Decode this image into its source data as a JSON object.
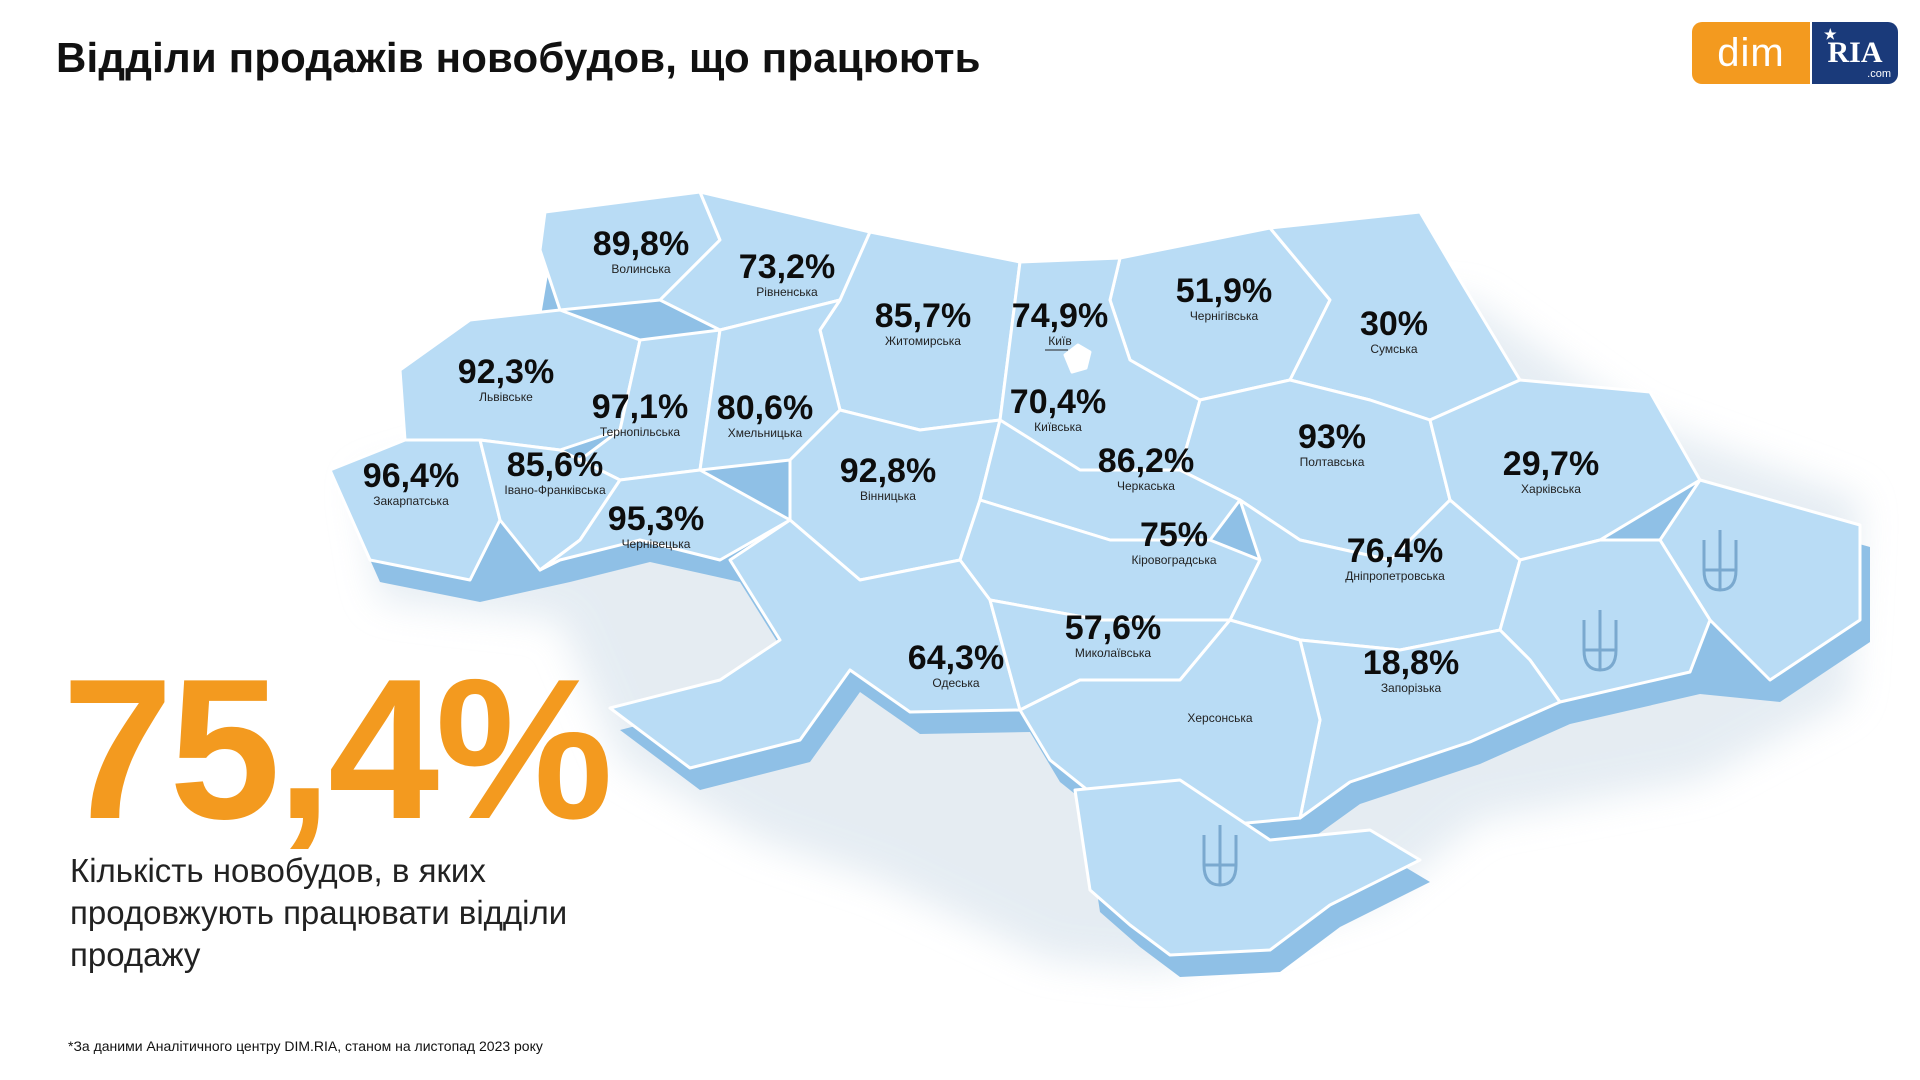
{
  "header": {
    "title": "Відділи продажів новобудов, що працюють"
  },
  "logo": {
    "dim": "dim",
    "ria": "RIA",
    "com": ".com"
  },
  "colors": {
    "accent": "#f39a1f",
    "map_fill": "#b9dcf5",
    "map_side": "#8fc0e6",
    "map_border": "#ffffff",
    "logo_blue": "#1a3a7a"
  },
  "regions": [
    {
      "name": "Волинська",
      "pct": "89,8%"
    },
    {
      "name": "Рівненська",
      "pct": "73,2%"
    },
    {
      "name": "Житомирська",
      "pct": "85,7%"
    },
    {
      "name": "Київ",
      "pct": "74,9%"
    },
    {
      "name": "Чернігівська",
      "pct": "51,9%"
    },
    {
      "name": "Сумська",
      "pct": "30%"
    },
    {
      "name": "Львівське",
      "pct": "92,3%"
    },
    {
      "name": "Тернопільська",
      "pct": "97,1%"
    },
    {
      "name": "Хмельницька",
      "pct": "80,6%"
    },
    {
      "name": "Київська",
      "pct": "70,4%"
    },
    {
      "name": "Полтавська",
      "pct": "93%"
    },
    {
      "name": "Харківська",
      "pct": "29,7%"
    },
    {
      "name": "Закарпатська",
      "pct": "96,4%"
    },
    {
      "name": "Івано-Франківська",
      "pct": "85,6%"
    },
    {
      "name": "Вінницька",
      "pct": "92,8%"
    },
    {
      "name": "Черкаська",
      "pct": "86,2%"
    },
    {
      "name": "Чернівецька",
      "pct": "95,3%"
    },
    {
      "name": "Кіровоградська",
      "pct": "75%"
    },
    {
      "name": "Дніпропетровська",
      "pct": "76,4%"
    },
    {
      "name": "Одеська",
      "pct": "64,3%"
    },
    {
      "name": "Миколаївська",
      "pct": "57,6%"
    },
    {
      "name": "Запорізька",
      "pct": "18,8%"
    },
    {
      "name": "Херсонська",
      "pct": ""
    }
  ],
  "summary": {
    "value": "75,4%",
    "description": "Кількість новобудов, в яких продовжують працювати відділи продажу"
  },
  "footnote": "*За даними Аналітичного центру DIM.RIA, станом на листопад 2023 року"
}
